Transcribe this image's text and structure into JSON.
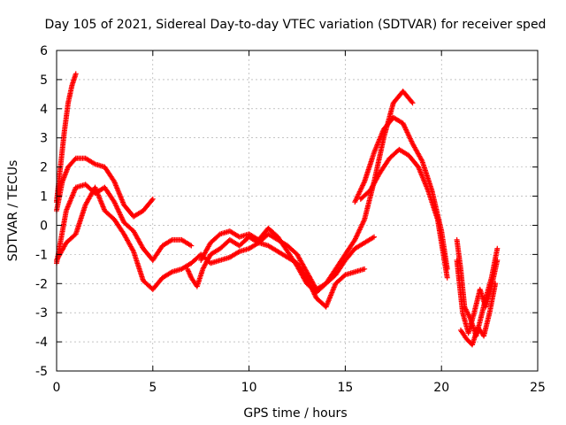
{
  "chart_data": {
    "type": "scatter",
    "title": "Day 105 of 2021, Sidereal Day-to-day VTEC variation (SDTVAR) for receiver sped",
    "xlabel": "GPS time / hours",
    "ylabel": "SDTVAR / TECUs",
    "xlim": [
      0,
      25
    ],
    "ylim": [
      -5,
      6
    ],
    "xticks": [
      0,
      5,
      10,
      15,
      20,
      25
    ],
    "yticks": [
      -5,
      -4,
      -3,
      -2,
      -1,
      0,
      1,
      2,
      3,
      4,
      5,
      6
    ],
    "grid": true,
    "marker": "plus",
    "color": "#ff0000",
    "series": [
      {
        "x": [
          0.0,
          0.2,
          0.4,
          0.6,
          0.8,
          1.0
        ],
        "y": [
          0.8,
          2.0,
          3.2,
          4.2,
          4.8,
          5.2
        ]
      },
      {
        "x": [
          0.0,
          0.3,
          0.6,
          1.0,
          1.5,
          2.0,
          2.5,
          3.0,
          3.5,
          4.0,
          4.5,
          5.0
        ],
        "y": [
          0.5,
          1.5,
          2.0,
          2.3,
          2.3,
          2.1,
          2.0,
          1.5,
          0.7,
          0.3,
          0.5,
          0.9
        ]
      },
      {
        "x": [
          0.0,
          0.5,
          1.0,
          1.5,
          2.0,
          2.5,
          3.0,
          3.5,
          4.0,
          4.5,
          5.0,
          5.5,
          6.0,
          6.5,
          7.0
        ],
        "y": [
          -1.3,
          0.5,
          1.3,
          1.4,
          1.1,
          1.3,
          0.8,
          0.1,
          -0.2,
          -0.8,
          -1.2,
          -0.7,
          -0.5,
          -0.5,
          -0.7
        ]
      },
      {
        "x": [
          0.0,
          0.5,
          1.0,
          1.5,
          2.0,
          2.5,
          3.0,
          3.5,
          4.0,
          4.5,
          5.0,
          5.5,
          6.0,
          6.5,
          7.0,
          7.5,
          8.0,
          8.5,
          9.0,
          9.5,
          10.0,
          10.5,
          11.0,
          11.5,
          12.0,
          12.5,
          13.0,
          13.5,
          14.0,
          14.5,
          15.0,
          15.5,
          16.0
        ],
        "y": [
          -1.2,
          -0.6,
          -0.3,
          0.7,
          1.3,
          0.5,
          0.2,
          -0.3,
          -0.9,
          -1.9,
          -2.2,
          -1.8,
          -1.6,
          -1.5,
          -1.3,
          -1.0,
          -1.3,
          -1.2,
          -1.1,
          -0.9,
          -0.8,
          -0.6,
          -0.7,
          -0.9,
          -1.1,
          -1.3,
          -1.8,
          -2.5,
          -2.8,
          -2.0,
          -1.7,
          -1.6,
          -1.5
        ]
      },
      {
        "x": [
          6.8,
          7.0,
          7.3,
          7.6,
          8.0,
          8.5,
          9.0,
          9.5,
          10.0,
          10.5,
          11.0,
          11.5,
          12.0,
          12.5,
          13.0,
          13.5,
          14.0,
          14.5,
          15.0,
          15.5,
          16.0,
          16.5
        ],
        "y": [
          -1.5,
          -1.8,
          -2.1,
          -1.5,
          -1.0,
          -0.8,
          -0.5,
          -0.7,
          -0.4,
          -0.6,
          -0.3,
          -0.5,
          -0.7,
          -1.0,
          -1.6,
          -2.2,
          -2.0,
          -1.7,
          -1.2,
          -0.8,
          -0.6,
          -0.4
        ]
      },
      {
        "x": [
          7.5,
          8.0,
          8.5,
          9.0,
          9.5,
          10.0,
          10.5,
          11.0,
          11.5,
          12.0,
          12.5,
          13.0,
          13.5,
          14.0,
          14.5,
          15.0,
          15.5,
          16.0,
          16.5,
          17.0,
          17.5,
          18.0,
          18.5
        ],
        "y": [
          -1.2,
          -0.6,
          -0.3,
          -0.2,
          -0.4,
          -0.3,
          -0.5,
          -0.1,
          -0.4,
          -0.9,
          -1.4,
          -2.0,
          -2.3,
          -2.0,
          -1.5,
          -1.0,
          -0.5,
          0.2,
          1.5,
          3.0,
          4.2,
          4.6,
          4.2
        ]
      },
      {
        "x": [
          15.5,
          16.0,
          16.5,
          17.0,
          17.5,
          18.0,
          18.5,
          19.0,
          19.5,
          20.0,
          20.3
        ],
        "y": [
          0.8,
          1.5,
          2.5,
          3.3,
          3.7,
          3.5,
          2.8,
          2.2,
          1.2,
          -0.2,
          -1.5
        ]
      },
      {
        "x": [
          15.8,
          16.3,
          16.8,
          17.3,
          17.8,
          18.3,
          18.8,
          19.3,
          19.8,
          20.3
        ],
        "y": [
          0.9,
          1.2,
          1.8,
          2.3,
          2.6,
          2.4,
          2.0,
          1.2,
          0.2,
          -1.8
        ]
      },
      {
        "x": [
          20.8,
          21.0,
          21.2,
          21.5,
          21.8,
          22.0,
          22.3,
          22.6,
          22.9
        ],
        "y": [
          -0.5,
          -1.5,
          -2.8,
          -3.2,
          -3.8,
          -3.3,
          -2.5,
          -1.8,
          -0.8
        ]
      },
      {
        "x": [
          20.8,
          21.1,
          21.4,
          21.7,
          22.0,
          22.3,
          22.6,
          22.9
        ],
        "y": [
          -1.2,
          -3.0,
          -3.7,
          -3.0,
          -2.2,
          -2.8,
          -2.1,
          -1.2
        ]
      },
      {
        "x": [
          21.0,
          21.3,
          21.6,
          21.9,
          22.2,
          22.5,
          22.8
        ],
        "y": [
          -3.6,
          -3.9,
          -4.1,
          -3.5,
          -3.8,
          -3.0,
          -2.0
        ]
      }
    ]
  }
}
